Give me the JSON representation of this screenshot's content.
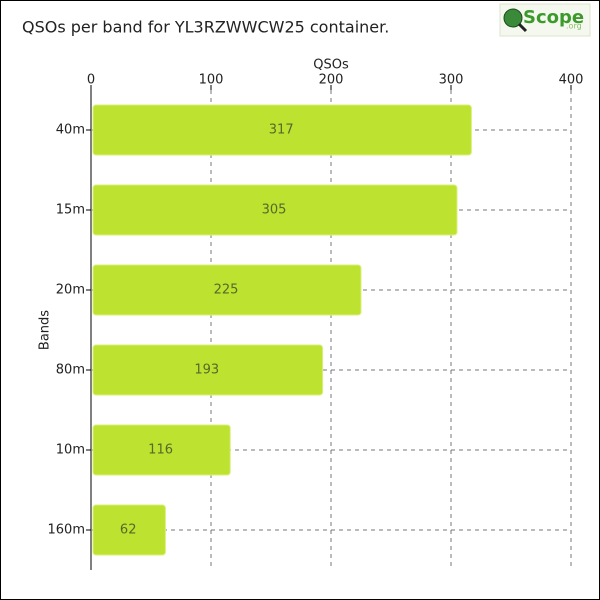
{
  "chart_data": {
    "type": "bar",
    "orientation": "horizontal",
    "title": "QSOs per band for YL3RZWWCW25 container.",
    "logo": "Scope",
    "logo_suffix": ".org",
    "x_label": "QSOs",
    "y_label": "Bands",
    "categories": [
      "40m",
      "15m",
      "20m",
      "80m",
      "10m",
      "160m"
    ],
    "values": [
      317,
      305,
      225,
      193,
      116,
      62
    ],
    "color": "#bde22f",
    "xlim": [
      0,
      400
    ],
    "xticks": [
      0,
      100,
      200,
      300,
      400
    ],
    "grid": true
  }
}
